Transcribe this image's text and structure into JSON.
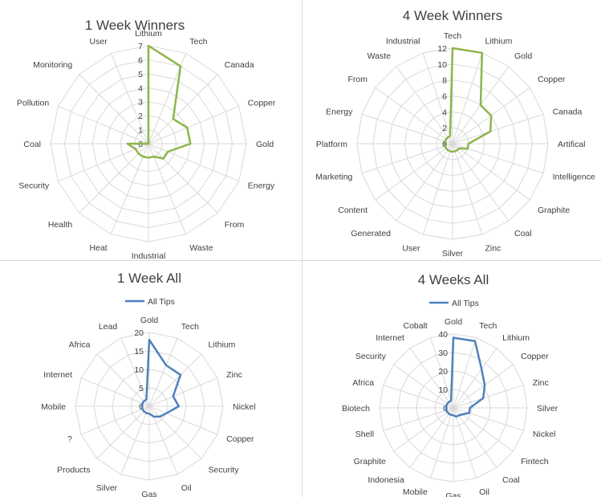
{
  "colors": {
    "green": "#8eb54b",
    "blue": "#4f81bd",
    "grid": "#d9d9d9",
    "text": "#404040"
  },
  "chart_data": [
    {
      "type": "radar",
      "title": "1 Week Winners",
      "categories": [
        "Lithium",
        "Tech",
        "Canada",
        "Copper",
        "Gold",
        "Energy",
        "From",
        "Waste",
        "Industrial",
        "Heat",
        "Health",
        "Security",
        "Coal",
        "Pollution",
        "Monitoring",
        "User"
      ],
      "ylim": [
        0,
        7
      ],
      "ticks": [
        0,
        1,
        2,
        3,
        4,
        5,
        6,
        7
      ],
      "grid": true,
      "legend": null,
      "series": [
        {
          "values": [
            7,
            6,
            2.5,
            3,
            3,
            1.5,
            1.5,
            1,
            1,
            1,
            1,
            1,
            1.5,
            0,
            0,
            0
          ]
        }
      ]
    },
    {
      "type": "radar",
      "title": "4 Week Winners",
      "categories": [
        "Tech",
        "Lithium",
        "Gold",
        "Copper",
        "Canada",
        "Artifical",
        "Intelligence",
        "Graphite",
        "Coal",
        "Zinc",
        "Silver",
        "User",
        "Generated",
        "Content",
        "Marketing",
        "Platform",
        "Energy",
        "From",
        "Waste",
        "Industrial"
      ],
      "ylim": [
        0,
        12
      ],
      "ticks": [
        0,
        2,
        4,
        6,
        8,
        10,
        12
      ],
      "grid": true,
      "legend": null,
      "series": [
        {
          "values": [
            12,
            12,
            6,
            6,
            5,
            2,
            2,
            1,
            1,
            1,
            1,
            1,
            1,
            1,
            1,
            1,
            1,
            1,
            1,
            1
          ]
        }
      ]
    },
    {
      "type": "radar",
      "title": "1 Week All",
      "categories": [
        "Gold",
        "Tech",
        "Lithium",
        "Zinc",
        "Nickel",
        "Copper",
        "Security",
        "Oil",
        "Gas",
        "Silver",
        "Products",
        "?",
        "Mobile",
        "Internet",
        "Africa",
        "Lead"
      ],
      "ylim": [
        0,
        20
      ],
      "ticks": [
        0,
        5,
        10,
        15,
        20
      ],
      "grid": true,
      "legend": "top",
      "series": [
        {
          "name": "All Tips",
          "values": [
            18,
            12,
            12,
            7,
            8,
            5,
            4,
            3,
            2,
            2,
            2,
            2,
            2,
            2,
            2,
            2
          ]
        }
      ]
    },
    {
      "type": "radar",
      "title": "4 Weeks All",
      "categories": [
        "Gold",
        "Tech",
        "Lithium",
        "Copper",
        "Zinc",
        "Silver",
        "Nickel",
        "Fintech",
        "Coal",
        "Oil",
        "Gas",
        "Mobile",
        "Indonesia",
        "Graphite",
        "Shell",
        "Biotech",
        "Africa",
        "Security",
        "Internet",
        "Cobalt"
      ],
      "ylim": [
        0,
        40
      ],
      "ticks": [
        0,
        10,
        20,
        30,
        40
      ],
      "grid": true,
      "legend": "top",
      "series": [
        {
          "name": "All Tips",
          "values": [
            38,
            38,
            26,
            21,
            17,
            9,
            9,
            6,
            5,
            5,
            4,
            4,
            4,
            4,
            4,
            4,
            4,
            4,
            4,
            4
          ]
        }
      ]
    }
  ]
}
